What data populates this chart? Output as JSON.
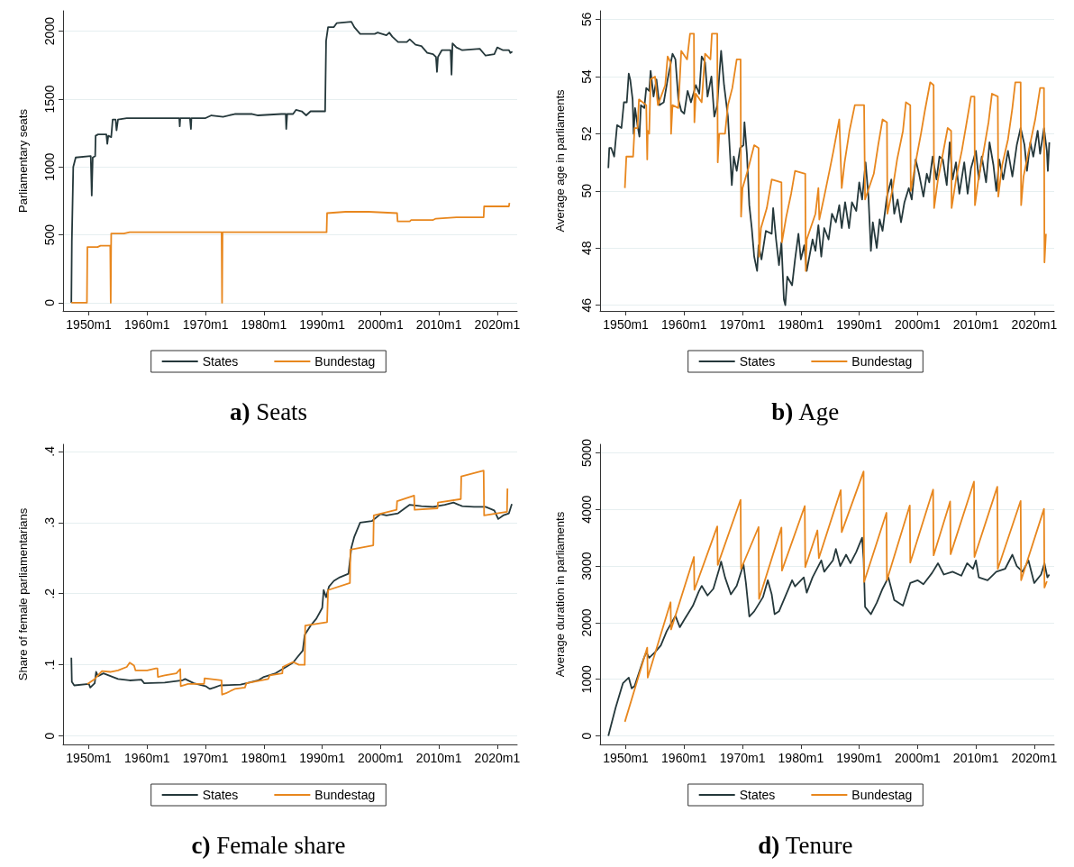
{
  "chart_data": [
    {
      "type": "line",
      "title": "a) Seats",
      "ylabel": "Parliamentary seats",
      "xlim": [
        "1945-08",
        "2023-06"
      ],
      "xticks": [
        {
          "value": "1950-01",
          "label": "1950m1"
        },
        {
          "value": "1960-01",
          "label": "1960m1"
        },
        {
          "value": "1970-01",
          "label": "1970m1"
        },
        {
          "value": "1980-01",
          "label": "1980m1"
        },
        {
          "value": "1990-01",
          "label": "1990m1"
        },
        {
          "value": "2000-01",
          "label": "2000m1"
        },
        {
          "value": "2010-01",
          "label": "2010m1"
        },
        {
          "value": "2020-01",
          "label": "2020m1"
        }
      ],
      "ylim": [
        -60,
        2150
      ],
      "yticks": [
        0,
        500,
        1000,
        1500,
        2000
      ],
      "grid": "y",
      "legend": "bottom",
      "series": [
        {
          "name": "States",
          "color": "#25383b",
          "x": [
            "1947-01",
            "1947-02",
            "1947-05",
            "1947-10",
            "1950-05",
            "1950-07",
            "1950-09",
            "1951-02",
            "1951-03",
            "1951-08",
            "1953-01",
            "1953-03",
            "1953-05",
            "1953-11",
            "1954-02",
            "1954-08",
            "1954-10",
            "1955-01",
            "1956-07",
            "1965-07",
            "1965-08",
            "1965-09",
            "1967-05",
            "1967-07",
            "1967-08",
            "1970-01",
            "1971-01",
            "1973-01",
            "1975-01",
            "1978-01",
            "1979-01",
            "1983-01",
            "1983-10",
            "1983-11",
            "1984-01",
            "1985-01",
            "1985-07",
            "1986-07",
            "1987-04",
            "1988-01",
            "1990-07",
            "1990-09",
            "1991-01",
            "1992-01",
            "1992-07",
            "1995-01",
            "1995-07",
            "1996-07",
            "1999-01",
            "1999-07",
            "2001-01",
            "2001-07",
            "2002-01",
            "2003-01",
            "2004-07",
            "2005-01",
            "2006-01",
            "2007-01",
            "2008-01",
            "2009-01",
            "2009-07",
            "2009-09",
            "2009-11",
            "2010-07",
            "2012-01",
            "2012-03",
            "2012-05",
            "2013-01",
            "2014-01",
            "2017-01",
            "2018-01",
            "2019-07",
            "2020-01",
            "2021-01",
            "2022-01",
            "2022-04",
            "2022-08"
          ],
          "values": [
            0,
            450,
            1000,
            1070,
            1080,
            790,
            1070,
            1080,
            1230,
            1240,
            1240,
            1170,
            1230,
            1220,
            1350,
            1350,
            1270,
            1350,
            1360,
            1360,
            1300,
            1360,
            1360,
            1280,
            1360,
            1360,
            1380,
            1370,
            1390,
            1390,
            1380,
            1390,
            1390,
            1280,
            1390,
            1390,
            1420,
            1410,
            1380,
            1410,
            1410,
            1930,
            2030,
            2030,
            2060,
            2070,
            2030,
            1980,
            1980,
            1990,
            1970,
            1990,
            1960,
            1920,
            1920,
            1940,
            1900,
            1890,
            1840,
            1830,
            1810,
            1700,
            1810,
            1860,
            1860,
            1680,
            1910,
            1880,
            1860,
            1870,
            1820,
            1830,
            1880,
            1860,
            1860,
            1840,
            1850
          ]
        },
        {
          "name": "Bundestag",
          "color": "#e8871e",
          "x": [
            "1947-01",
            "1949-09",
            "1949-10",
            "1951-07",
            "1952-01",
            "1953-09",
            "1953-10",
            "1953-11",
            "1956-01",
            "1957-01",
            "1972-10",
            "1972-11",
            "1972-12",
            "1990-10",
            "1990-11",
            "1994-01",
            "1998-01",
            "2002-11",
            "2002-12",
            "2005-01",
            "2005-04",
            "2009-01",
            "2009-07",
            "2013-01",
            "2017-09",
            "2017-10",
            "2022-01",
            "2022-02"
          ],
          "values": [
            0,
            0,
            410,
            410,
            420,
            420,
            0,
            510,
            510,
            520,
            520,
            0,
            520,
            520,
            660,
            670,
            670,
            660,
            600,
            600,
            610,
            610,
            620,
            630,
            630,
            710,
            710,
            735
          ]
        }
      ]
    },
    {
      "type": "line",
      "title": "b) Age",
      "ylabel": "Average age in parliaments",
      "xlim": [
        "1945-08",
        "2023-06"
      ],
      "xticks": [
        {
          "value": "1950-01",
          "label": "1950m1"
        },
        {
          "value": "1960-01",
          "label": "1960m1"
        },
        {
          "value": "1970-01",
          "label": "1970m1"
        },
        {
          "value": "1980-01",
          "label": "1980m1"
        },
        {
          "value": "1990-01",
          "label": "1990m1"
        },
        {
          "value": "2000-01",
          "label": "2000m1"
        },
        {
          "value": "2010-01",
          "label": "2010m1"
        },
        {
          "value": "2020-01",
          "label": "2020m1"
        }
      ],
      "ylim": [
        45.8,
        56.3
      ],
      "yticks": [
        46,
        48,
        50,
        52,
        54,
        56
      ],
      "grid": "y",
      "legend": "bottom",
      "series": [
        {
          "name": "States",
          "color": "#25383b",
          "x": [
            "1947-01",
            "1947-03",
            "1947-07",
            "1948-01",
            "1948-07",
            "1949-04",
            "1949-09",
            "1950-03",
            "1950-07",
            "1950-10",
            "1951-03",
            "1951-05",
            "1951-08",
            "1952-01",
            "1952-05",
            "1952-08",
            "1953-03",
            "1953-07",
            "1954-01",
            "1954-04",
            "1954-10",
            "1955-04",
            "1955-10",
            "1956-07",
            "1957-03",
            "1958-01",
            "1958-07",
            "1959-01",
            "1959-07",
            "1960-01",
            "1960-08",
            "1961-03",
            "1962-01",
            "1962-08",
            "1963-01",
            "1963-08",
            "1964-01",
            "1964-09",
            "1965-03",
            "1965-09",
            "1966-01",
            "1966-05",
            "1966-11",
            "1967-07",
            "1968-03",
            "1968-07",
            "1969-01",
            "1969-08",
            "1970-03",
            "1970-05",
            "1970-10",
            "1971-03",
            "1971-08",
            "1972-01",
            "1972-07",
            "1972-10",
            "1973-04",
            "1974-01",
            "1975-01",
            "1975-04",
            "1975-10",
            "1976-04",
            "1976-09",
            "1977-02",
            "1977-05",
            "1977-09",
            "1978-07",
            "1979-01",
            "1979-08",
            "1980-01",
            "1980-08",
            "1981-01",
            "1982-01",
            "1982-07",
            "1983-01",
            "1983-07",
            "1984-01",
            "1984-10",
            "1985-05",
            "1986-01",
            "1986-08",
            "1987-01",
            "1987-08",
            "1988-04",
            "1988-10",
            "1989-07",
            "1990-01",
            "1990-07",
            "1991-02",
            "1991-08",
            "1992-01",
            "1992-05",
            "1993-01",
            "1993-07",
            "1994-01",
            "1994-10",
            "1995-07",
            "1996-01",
            "1996-08",
            "1997-03",
            "1997-10",
            "1998-07",
            "1999-01",
            "1999-09",
            "2000-04",
            "2001-01",
            "2001-08",
            "2002-01",
            "2002-08",
            "2003-04",
            "2003-10",
            "2004-05",
            "2005-01",
            "2005-07",
            "2006-01",
            "2006-08",
            "2007-03",
            "2008-01",
            "2008-08",
            "2009-03",
            "2010-01",
            "2010-07",
            "2011-01",
            "2011-10",
            "2012-05",
            "2013-01",
            "2013-07",
            "2014-01",
            "2014-09",
            "2015-07",
            "2016-04",
            "2017-01",
            "2017-09",
            "2018-05",
            "2018-10",
            "2019-05",
            "2019-11",
            "2020-08",
            "2021-01",
            "2021-09",
            "2022-03",
            "2022-05",
            "2022-08"
          ],
          "values": [
            50.8,
            51.5,
            51.5,
            51.2,
            52.3,
            52.2,
            53.1,
            53.1,
            54.1,
            53.9,
            53.2,
            52.0,
            52.9,
            52.3,
            51.9,
            53.0,
            52.9,
            53.6,
            53.5,
            54.2,
            53.3,
            53.9,
            53.0,
            53.1,
            53.9,
            54.8,
            54.6,
            53.2,
            52.8,
            52.7,
            53.5,
            53.1,
            53.7,
            53.4,
            54.7,
            54.5,
            53.3,
            54.0,
            52.6,
            53.0,
            54.0,
            54.9,
            53.7,
            52.6,
            50.2,
            51.2,
            50.7,
            51.5,
            51.6,
            52.4,
            51.3,
            49.5,
            48.7,
            47.7,
            47.2,
            48.1,
            47.6,
            48.6,
            48.5,
            49.4,
            48.3,
            47.4,
            48.2,
            46.2,
            46.0,
            47.0,
            46.7,
            47.6,
            48.5,
            47.6,
            48.1,
            47.2,
            48.3,
            47.9,
            48.8,
            47.7,
            48.7,
            48.3,
            49.2,
            48.9,
            49.5,
            48.7,
            49.6,
            48.7,
            49.6,
            49.3,
            50.3,
            49.7,
            51.0,
            49.8,
            47.9,
            48.9,
            48.0,
            49.0,
            48.6,
            49.8,
            50.4,
            49.2,
            49.7,
            48.9,
            49.6,
            50.1,
            49.7,
            51.1,
            50.6,
            49.8,
            50.6,
            50.3,
            51.2,
            50.4,
            51.2,
            51.1,
            50.2,
            51.7,
            50.4,
            51.0,
            49.9,
            51.0,
            49.9,
            50.8,
            51.4,
            50.4,
            51.2,
            50.3,
            51.7,
            50.9,
            50.0,
            51.1,
            50.4,
            51.4,
            50.5,
            51.6,
            52.2,
            51.6,
            50.7,
            51.7,
            51.2,
            52.1,
            51.3,
            52.2,
            51.4,
            50.7,
            51.7
          ]
        },
        {
          "name": "Bundestag",
          "color": "#e8871e",
          "x": [
            "1949-11",
            "1950-02",
            "1951-04",
            "1951-07",
            "1952-01",
            "1952-04",
            "1953-07",
            "1953-09",
            "1953-10",
            "1954-01",
            "1954-04",
            "1955-01",
            "1955-07",
            "1956-10",
            "1957-03",
            "1957-09",
            "1957-10",
            "1958-01",
            "1959-01",
            "1959-07",
            "1960-07",
            "1961-01",
            "1961-09",
            "1961-10",
            "1962-01",
            "1963-01",
            "1963-08",
            "1964-07",
            "1964-10",
            "1965-09",
            "1965-10",
            "1966-01",
            "1967-01",
            "1967-07",
            "1968-04",
            "1969-01",
            "1969-09",
            "1969-10",
            "1970-01",
            "1971-01",
            "1972-01",
            "1972-10",
            "1972-11",
            "1973-03",
            "1974-03",
            "1975-01",
            "1976-09",
            "1976-10",
            "1977-07",
            "1978-05",
            "1979-01",
            "1980-10",
            "1980-11",
            "1981-01",
            "1982-07",
            "1983-01",
            "1983-03",
            "1984-01",
            "1985-01",
            "1985-08",
            "1986-08",
            "1987-01",
            "1987-07",
            "1988-05",
            "1989-04",
            "1990-11",
            "1991-01",
            "1992-07",
            "1993-04",
            "1994-01",
            "1994-10",
            "1994-11",
            "1995-10",
            "1996-07",
            "1997-07",
            "1998-01",
            "1998-10",
            "1998-11",
            "1999-09",
            "2000-08",
            "2001-04",
            "2002-03",
            "2002-10",
            "2002-11",
            "2003-07",
            "2004-04",
            "2005-03",
            "2005-10",
            "2005-11",
            "2006-09",
            "2007-08",
            "2008-04",
            "2009-03",
            "2009-10",
            "2009-11",
            "2010-07",
            "2011-05",
            "2012-03",
            "2012-10",
            "2013-10",
            "2013-11",
            "2014-07",
            "2015-07",
            "2016-04",
            "2016-10",
            "2017-09",
            "2017-10",
            "2018-03",
            "2019-04",
            "2020-03",
            "2021-01",
            "2021-09",
            "2021-10",
            "2022-01"
          ],
          "values": [
            50.1,
            51.2,
            51.2,
            52.2,
            52.2,
            53.2,
            53.0,
            51.1,
            52.1,
            52.0,
            53.9,
            54.0,
            53.0,
            53.7,
            54.7,
            54.5,
            52.0,
            53.0,
            52.9,
            54.9,
            54.6,
            55.5,
            55.5,
            52.4,
            53.4,
            53.1,
            54.8,
            54.6,
            55.5,
            55.5,
            51.0,
            52.0,
            52.0,
            53.0,
            53.6,
            54.6,
            54.6,
            49.1,
            50.1,
            50.8,
            51.6,
            51.5,
            47.7,
            48.7,
            49.4,
            50.4,
            50.3,
            48.2,
            49.1,
            49.9,
            50.7,
            50.6,
            47.2,
            48.3,
            49.2,
            50.1,
            49.0,
            49.8,
            50.8,
            51.4,
            52.5,
            50.1,
            51.0,
            52.1,
            53.0,
            53.0,
            49.7,
            50.6,
            51.6,
            52.5,
            52.4,
            49.2,
            50.1,
            51.1,
            52.1,
            53.1,
            53.0,
            50.0,
            51.0,
            52.0,
            52.8,
            53.8,
            53.7,
            49.4,
            50.4,
            51.2,
            52.2,
            52.1,
            49.4,
            50.5,
            51.4,
            52.2,
            53.3,
            53.3,
            49.5,
            50.5,
            51.4,
            52.4,
            53.4,
            53.3,
            49.8,
            50.9,
            51.8,
            52.9,
            53.8,
            53.8,
            49.5,
            50.5,
            51.6,
            52.5,
            53.6,
            53.6,
            47.5,
            48.5
          ]
        }
      ]
    },
    {
      "type": "line",
      "title": "c) Female share",
      "ylabel": "Share of female parliamentarians",
      "xlim": [
        "1945-08",
        "2023-06"
      ],
      "xticks": [
        {
          "value": "1950-01",
          "label": "1950m1"
        },
        {
          "value": "1960-01",
          "label": "1960m1"
        },
        {
          "value": "1970-01",
          "label": "1970m1"
        },
        {
          "value": "1980-01",
          "label": "1980m1"
        },
        {
          "value": "1990-01",
          "label": "1990m1"
        },
        {
          "value": "2000-01",
          "label": "2000m1"
        },
        {
          "value": "2010-01",
          "label": "2010m1"
        },
        {
          "value": "2020-01",
          "label": "2020m1"
        }
      ],
      "ylim": [
        -0.012,
        0.41
      ],
      "yticks": [
        0,
        {
          "value": 0.1,
          "label": ".1"
        },
        {
          "value": 0.2,
          "label": ".2"
        },
        {
          "value": 0.3,
          "label": ".3"
        },
        {
          "value": 0.4,
          "label": ".4"
        }
      ],
      "grid": "y",
      "legend": "bottom",
      "series": [
        {
          "name": "States",
          "color": "#25383b",
          "x": [
            "1947-01",
            "1947-02",
            "1947-07",
            "1950-01",
            "1950-04",
            "1951-01",
            "1951-04",
            "1951-08",
            "1952-07",
            "1955-01",
            "1957-01",
            "1959-01",
            "1959-07",
            "1963-01",
            "1966-01",
            "1966-07",
            "1968-01",
            "1970-01",
            "1970-10",
            "1971-07",
            "1972-07",
            "1976-01",
            "1977-01",
            "1979-01",
            "1980-01",
            "1982-01",
            "1984-01",
            "1985-01",
            "1985-09",
            "1986-09",
            "1987-01",
            "1988-01",
            "1989-01",
            "1990-01",
            "1990-04",
            "1990-09",
            "1991-03",
            "1992-01",
            "1993-01",
            "1994-07",
            "1995-01",
            "1995-07",
            "1996-07",
            "1998-07",
            "2000-01",
            "2001-01",
            "2003-01",
            "2005-01",
            "2007-01",
            "2009-01",
            "2011-01",
            "2012-07",
            "2014-01",
            "2016-01",
            "2018-01",
            "2019-07",
            "2020-03",
            "2021-01",
            "2022-01",
            "2022-07"
          ],
          "values": [
            0.11,
            0.076,
            0.071,
            0.073,
            0.068,
            0.074,
            0.09,
            0.084,
            0.088,
            0.08,
            0.078,
            0.079,
            0.074,
            0.075,
            0.078,
            0.08,
            0.074,
            0.07,
            0.066,
            0.068,
            0.071,
            0.072,
            0.074,
            0.078,
            0.083,
            0.088,
            0.098,
            0.103,
            0.11,
            0.12,
            0.142,
            0.155,
            0.165,
            0.18,
            0.205,
            0.195,
            0.21,
            0.218,
            0.223,
            0.228,
            0.265,
            0.28,
            0.3,
            0.302,
            0.312,
            0.31,
            0.313,
            0.325,
            0.323,
            0.322,
            0.325,
            0.328,
            0.323,
            0.322,
            0.322,
            0.317,
            0.305,
            0.31,
            0.313,
            0.326
          ]
        },
        {
          "name": "Bundestag",
          "color": "#e8871e",
          "x": [
            "1949-10",
            "1951-01",
            "1952-04",
            "1953-09",
            "1955-01",
            "1956-07",
            "1957-01",
            "1957-10",
            "1958-01",
            "1960-01",
            "1961-07",
            "1961-10",
            "1961-11",
            "1963-01",
            "1965-01",
            "1965-09",
            "1965-10",
            "1967-01",
            "1969-10",
            "1969-11",
            "1972-10",
            "1972-11",
            "1973-07",
            "1975-01",
            "1976-10",
            "1977-01",
            "1980-10",
            "1981-01",
            "1983-03",
            "1983-04",
            "1985-01",
            "1986-01",
            "1987-01",
            "1987-02",
            "1990-11",
            "1991-01",
            "1994-10",
            "1994-11",
            "1998-10",
            "1998-11",
            "2002-10",
            "2002-11",
            "2005-10",
            "2005-11",
            "2009-10",
            "2009-11",
            "2013-10",
            "2013-11",
            "2017-09",
            "2017-10",
            "2021-09",
            "2021-10"
          ],
          "values": [
            0.073,
            0.08,
            0.091,
            0.09,
            0.092,
            0.097,
            0.103,
            0.099,
            0.092,
            0.092,
            0.095,
            0.095,
            0.083,
            0.085,
            0.088,
            0.094,
            0.07,
            0.073,
            0.073,
            0.081,
            0.078,
            0.058,
            0.06,
            0.066,
            0.068,
            0.074,
            0.08,
            0.085,
            0.088,
            0.097,
            0.104,
            0.1,
            0.1,
            0.155,
            0.16,
            0.205,
            0.215,
            0.262,
            0.268,
            0.31,
            0.318,
            0.33,
            0.338,
            0.318,
            0.32,
            0.328,
            0.333,
            0.365,
            0.373,
            0.31,
            0.315,
            0.348
          ]
        }
      ]
    },
    {
      "type": "line",
      "title": "d) Tenure",
      "ylabel": "Average duration in parliaments",
      "xlim": [
        "1945-08",
        "2023-06"
      ],
      "xticks": [
        {
          "value": "1950-01",
          "label": "1950m1"
        },
        {
          "value": "1960-01",
          "label": "1960m1"
        },
        {
          "value": "1970-01",
          "label": "1970m1"
        },
        {
          "value": "1980-01",
          "label": "1980m1"
        },
        {
          "value": "1990-01",
          "label": "1990m1"
        },
        {
          "value": "2000-01",
          "label": "2000m1"
        },
        {
          "value": "2010-01",
          "label": "2010m1"
        },
        {
          "value": "2020-01",
          "label": "2020m1"
        }
      ],
      "ylim": [
        -150,
        5150
      ],
      "yticks": [
        0,
        1000,
        2000,
        3000,
        4000,
        5000
      ],
      "grid": "y",
      "legend": "bottom",
      "series": [
        {
          "name": "States",
          "color": "#25383b",
          "x": [
            "1947-01",
            "1947-04",
            "1948-04",
            "1949-07",
            "1950-07",
            "1951-01",
            "1951-07",
            "1953-01",
            "1953-07",
            "1954-01",
            "1955-01",
            "1956-01",
            "1957-01",
            "1958-07",
            "1959-04",
            "1960-01",
            "1961-07",
            "1962-07",
            "1963-01",
            "1964-01",
            "1965-01",
            "1966-01",
            "1966-05",
            "1967-01",
            "1968-01",
            "1969-01",
            "1970-03",
            "1970-08",
            "1971-03",
            "1972-01",
            "1973-07",
            "1974-05",
            "1975-01",
            "1975-07",
            "1976-04",
            "1978-07",
            "1979-01",
            "1980-07",
            "1981-01",
            "1982-01",
            "1983-07",
            "1984-01",
            "1985-07",
            "1986-01",
            "1986-10",
            "1987-10",
            "1988-07",
            "1989-07",
            "1990-07",
            "1990-10",
            "1991-01",
            "1992-01",
            "1993-01",
            "1994-01",
            "1995-01",
            "1996-01",
            "1997-07",
            "1998-10",
            "2000-01",
            "2001-01",
            "2002-07",
            "2003-07",
            "2004-07",
            "2006-01",
            "2007-07",
            "2008-07",
            "2009-07",
            "2010-01",
            "2010-07",
            "2012-01",
            "2013-07",
            "2015-01",
            "2016-04",
            "2017-01",
            "2018-01",
            "2019-01",
            "2020-01",
            "2021-03",
            "2021-10",
            "2022-04",
            "2022-08"
          ],
          "values": [
            0,
            100,
            500,
            930,
            1030,
            840,
            880,
            1350,
            1480,
            1380,
            1480,
            1600,
            1850,
            2120,
            1920,
            2050,
            2300,
            2550,
            2650,
            2480,
            2600,
            2950,
            3080,
            2800,
            2500,
            2650,
            3030,
            2700,
            2110,
            2200,
            2450,
            2750,
            2500,
            2150,
            2200,
            2750,
            2640,
            2800,
            2530,
            2800,
            3100,
            2900,
            3100,
            3300,
            3000,
            3200,
            3050,
            3250,
            3500,
            3130,
            2280,
            2150,
            2350,
            2600,
            2800,
            2400,
            2300,
            2700,
            2750,
            2680,
            2880,
            3050,
            2850,
            2900,
            2830,
            3050,
            2950,
            3100,
            2800,
            2750,
            2900,
            2950,
            3200,
            3000,
            2900,
            3100,
            2700,
            2850,
            3050,
            2800,
            2850
          ]
        },
        {
          "name": "Bundestag",
          "color": "#e8871e",
          "x": [
            "1949-11",
            "1953-09",
            "1953-10",
            "1957-09",
            "1957-10",
            "1961-09",
            "1961-10",
            "1965-09",
            "1965-10",
            "1969-09",
            "1969-10",
            "1972-10",
            "1972-11",
            "1976-09",
            "1976-10",
            "1980-09",
            "1980-10",
            "1982-11",
            "1983-02",
            "1986-11",
            "1987-01",
            "1990-10",
            "1990-11",
            "1994-09",
            "1994-10",
            "1998-09",
            "1998-10",
            "2002-09",
            "2002-10",
            "2005-08",
            "2005-09",
            "2009-09",
            "2009-10",
            "2013-09",
            "2013-10",
            "2017-09",
            "2017-10",
            "2021-09",
            "2021-10",
            "2022-03"
          ],
          "values": [
            250,
            1560,
            1030,
            2360,
            1880,
            3160,
            2580,
            3700,
            3020,
            4170,
            2950,
            3690,
            2420,
            3680,
            2920,
            4060,
            2980,
            3630,
            3140,
            4340,
            3600,
            4670,
            2720,
            3940,
            2750,
            4070,
            3060,
            4350,
            3190,
            4140,
            3210,
            4490,
            3160,
            4400,
            2950,
            4150,
            2750,
            4010,
            2620,
            2730
          ]
        }
      ]
    }
  ]
}
